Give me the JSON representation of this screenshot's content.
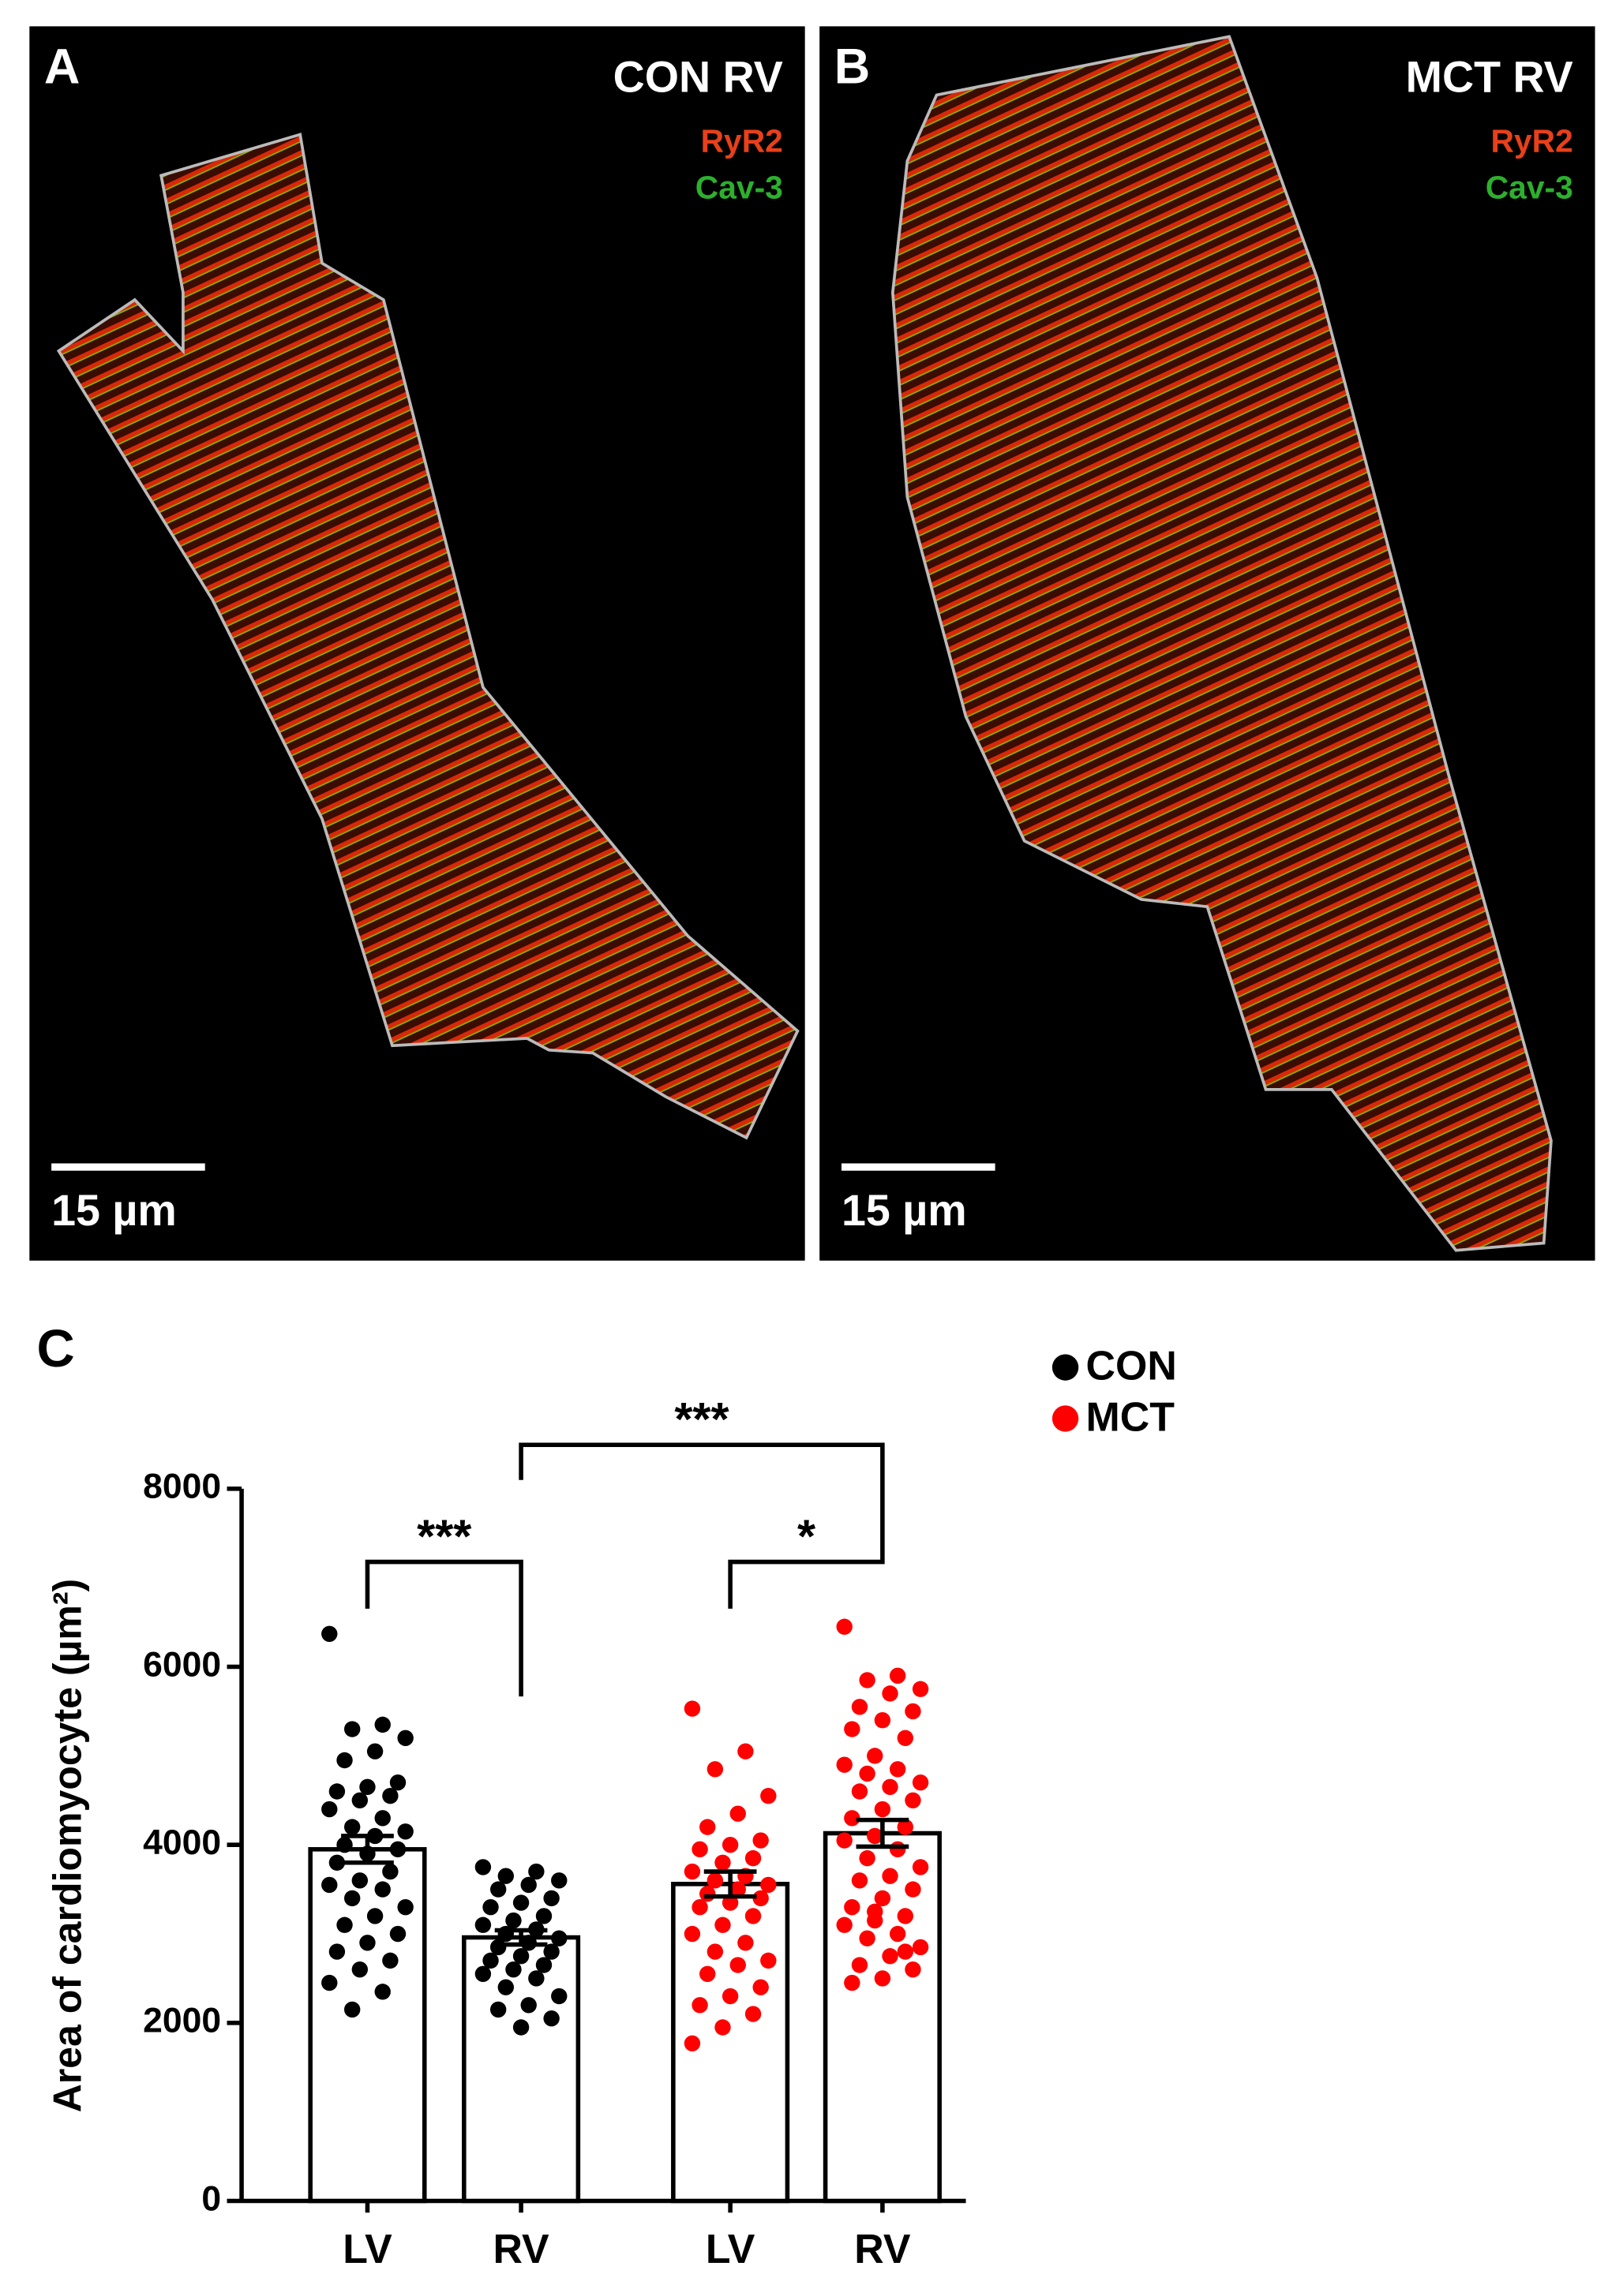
{
  "panels": [
    {
      "letter": "A",
      "label": "CON RV",
      "stain1": "RyR2",
      "stain2": "Cav-3",
      "scale": "15 µm"
    },
    {
      "letter": "B",
      "label": "MCT RV",
      "stain1": "RyR2",
      "stain2": "Cav-3",
      "scale": "15 µm"
    }
  ],
  "chart_data": {
    "type": "bar",
    "letter": "C",
    "ylabel": "Area of cardiomyocyte (µm²)",
    "categories": [
      "LV",
      "RV",
      "LV",
      "RV"
    ],
    "ylim": [
      0,
      8000
    ],
    "yticks": [
      0,
      2000,
      4000,
      6000,
      8000
    ],
    "annotations": [
      "***",
      "***",
      "*"
    ],
    "series": [
      {
        "name": "CON",
        "color": "#000000",
        "values": [
          3950,
          2960,
          null,
          null
        ],
        "errors": [
          150,
          80,
          null,
          null
        ],
        "points": [
          [
            6370,
            5350,
            5300,
            5200,
            5050,
            4950,
            4700,
            4650,
            4600,
            4550,
            4500,
            4400,
            4300,
            4200,
            4150,
            4100,
            4000,
            3950,
            3900,
            3800,
            3700,
            3600,
            3550,
            3500,
            3400,
            3300,
            3200,
            3100,
            3000,
            2900,
            2800,
            2700,
            2600,
            2450,
            2350,
            2150
          ],
          [
            3750,
            3700,
            3650,
            3600,
            3550,
            3500,
            3400,
            3350,
            3300,
            3200,
            3150,
            3100,
            3050,
            3000,
            2950,
            2900,
            2850,
            2800,
            2750,
            2700,
            2650,
            2600,
            2550,
            2500,
            2400,
            2300,
            2200,
            2150,
            2050,
            1950
          ],
          null,
          null
        ]
      },
      {
        "name": "MCT",
        "color": "#ff0000",
        "values": [
          null,
          null,
          3560,
          4130
        ],
        "errors": [
          null,
          null,
          140,
          150
        ],
        "points": [
          null,
          null,
          [
            5530,
            5050,
            4850,
            4550,
            4350,
            4200,
            4050,
            4000,
            3950,
            3850,
            3800,
            3700,
            3650,
            3600,
            3550,
            3500,
            3450,
            3400,
            3350,
            3300,
            3200,
            3100,
            3000,
            2900,
            2800,
            2700,
            2650,
            2550,
            2400,
            2300,
            2200,
            2100,
            1950,
            1770
          ],
          [
            6450,
            5900,
            5850,
            5750,
            5700,
            5550,
            5500,
            5400,
            5300,
            5200,
            5000,
            4900,
            4850,
            4800,
            4700,
            4650,
            4600,
            4500,
            4400,
            4300,
            4200,
            4100,
            4050,
            3950,
            3850,
            3750,
            3650,
            3600,
            3500,
            3400,
            3300,
            3200,
            3150,
            3100,
            3000,
            2950,
            2850,
            2750,
            2650,
            2600,
            2500,
            2450,
            2800,
            3250
          ]
        ]
      }
    ]
  }
}
